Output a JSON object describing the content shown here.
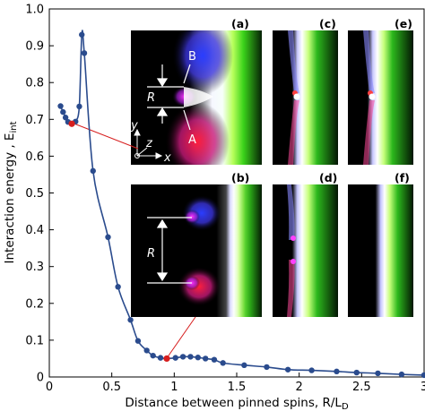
{
  "chart_data": {
    "type": "line",
    "xlabel": "Distance between pinned spins, R/L",
    "xlabel_sub": "D",
    "ylabel": "Interaction energy , E",
    "ylabel_sub": "int",
    "xlim": [
      0,
      3
    ],
    "ylim": [
      0,
      1.0
    ],
    "xticks": [
      0,
      0.5,
      1,
      1.5,
      2,
      2.5,
      3
    ],
    "xtick_labels": [
      "0",
      "0.5",
      "1",
      "1.5",
      "2",
      "2.5",
      "3"
    ],
    "yticks": [
      0,
      0.1,
      0.2,
      0.3,
      0.4,
      0.5,
      0.6,
      0.7,
      0.8,
      0.9,
      1.0
    ],
    "ytick_labels": [
      "0",
      "0.1",
      "0.2",
      "0.3",
      "0.4",
      "0.5",
      "0.6",
      "0.7",
      "0.8",
      "0.9",
      "1.0"
    ],
    "grid": false,
    "series": [
      {
        "color": "#2a4b8d",
        "x": [
          0.09,
          0.11,
          0.13,
          0.15,
          0.18,
          0.21,
          0.24,
          0.26,
          0.28,
          0.35,
          0.47,
          0.55,
          0.65,
          0.71,
          0.78,
          0.83,
          0.89,
          0.94,
          1.01,
          1.07,
          1.13,
          1.19,
          1.25,
          1.32,
          1.39,
          1.56,
          1.74,
          1.91,
          2.1,
          2.3,
          2.46,
          2.63,
          2.82,
          3.0
        ],
        "y": [
          0.736,
          0.72,
          0.705,
          0.693,
          0.688,
          0.694,
          0.735,
          0.93,
          0.88,
          0.56,
          0.38,
          0.245,
          0.155,
          0.098,
          0.072,
          0.058,
          0.052,
          0.05,
          0.052,
          0.055,
          0.055,
          0.053,
          0.05,
          0.047,
          0.038,
          0.032,
          0.027,
          0.02,
          0.018,
          0.015,
          0.012,
          0.01,
          0.007,
          0.005
        ]
      }
    ],
    "highlighted_points": [
      {
        "x": 0.18,
        "y": 0.688,
        "color": "#d71e1e"
      },
      {
        "x": 0.94,
        "y": 0.05,
        "color": "#d71e1e"
      }
    ],
    "insets": {
      "labels": [
        "(a)",
        "(b)",
        "(c)",
        "(d)",
        "(e)",
        "(f)"
      ],
      "annotations": {
        "b": "B",
        "a": "A",
        "r": "R",
        "axis_y": "y",
        "axis_z": "z",
        "axis_x": "x"
      }
    }
  }
}
